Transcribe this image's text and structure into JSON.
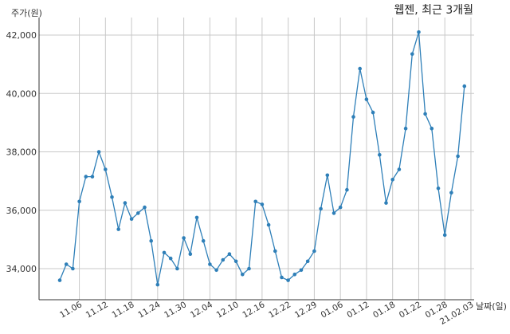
{
  "chart_data": {
    "type": "line",
    "title": "웹젠, 최근 3개월",
    "ylabel": "주가(원)",
    "xlabel": "날짜(일)",
    "ylim": [
      33000,
      43000
    ],
    "yticks": [
      34000,
      36000,
      38000,
      40000,
      42000
    ],
    "ytick_labels": [
      "34,000",
      "36,000",
      "38,000",
      "40,000",
      "42,000"
    ],
    "grid": "on",
    "colors": {
      "line": "#2e7fb8",
      "grid": "#c8c8c8",
      "axis": "#333333"
    },
    "xtick_labels": [
      "11.06",
      "11.12",
      "11.18",
      "11.24",
      "11.30",
      "12.04",
      "12.10",
      "12.16",
      "12.22",
      "12.29",
      "01.06",
      "01.12",
      "01.18",
      "01.22",
      "01.28",
      "21.02.03"
    ],
    "xtick_index": [
      3,
      7,
      11,
      15,
      19,
      23,
      27,
      31,
      35,
      39,
      43,
      47,
      51,
      55,
      59,
      63
    ],
    "values": [
      33600,
      34150,
      34000,
      36300,
      37150,
      37150,
      38000,
      37400,
      36450,
      35350,
      36250,
      35700,
      35900,
      36100,
      34950,
      33450,
      34550,
      34350,
      34000,
      35050,
      34500,
      35750,
      34950,
      34150,
      33950,
      34300,
      34500,
      34250,
      33800,
      34000,
      36300,
      36200,
      35500,
      34600,
      33700,
      33600,
      33800,
      33950,
      34250,
      34600,
      36050,
      37200,
      35900,
      36100,
      36700,
      39200,
      40850,
      39800,
      39350,
      37900,
      36250,
      37050,
      37400,
      38800,
      41350,
      42100,
      39300,
      38800,
      36750,
      35150,
      36600,
      37850,
      40250
    ]
  }
}
